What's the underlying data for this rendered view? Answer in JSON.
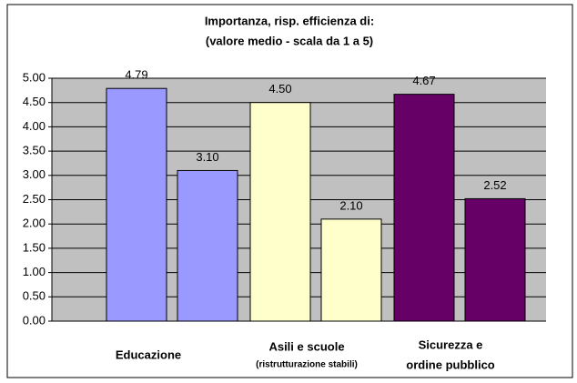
{
  "chart_data": {
    "type": "grouped-bar",
    "title": [
      "Importanza, risp. efficienza di:",
      "(valore medio - scala da 1 a 5)"
    ],
    "categories": [
      "Educazione",
      [
        "Asili e scuole",
        "(ristrutturazione stabili)"
      ],
      [
        "Sicurezza e",
        "ordine pubblico"
      ]
    ],
    "values": [
      [
        4.79,
        3.1
      ],
      [
        4.5,
        2.1
      ],
      [
        4.67,
        2.52
      ]
    ],
    "value_labels": [
      [
        "4.79",
        "3.10"
      ],
      [
        "4.50",
        "2.10"
      ],
      [
        "4.67",
        "2.52"
      ]
    ],
    "colors": [
      "#9999ff",
      "#ffffcc",
      "#660066"
    ],
    "ylim": [
      0,
      5
    ],
    "yticks": [
      {
        "value": 0,
        "label": "0.00"
      },
      {
        "value": 0.5,
        "label": "0.50"
      },
      {
        "value": 1,
        "label": "1.00"
      },
      {
        "value": 1.5,
        "label": "1.50"
      },
      {
        "value": 2,
        "label": "2.00"
      },
      {
        "value": 2.5,
        "label": "2.50"
      },
      {
        "value": 3,
        "label": "3.00"
      },
      {
        "value": 3.5,
        "label": "3.50"
      },
      {
        "value": 4,
        "label": "4.00"
      },
      {
        "value": 4.5,
        "label": "4.50"
      },
      {
        "value": 5,
        "label": "5.00"
      }
    ],
    "grid": true
  }
}
